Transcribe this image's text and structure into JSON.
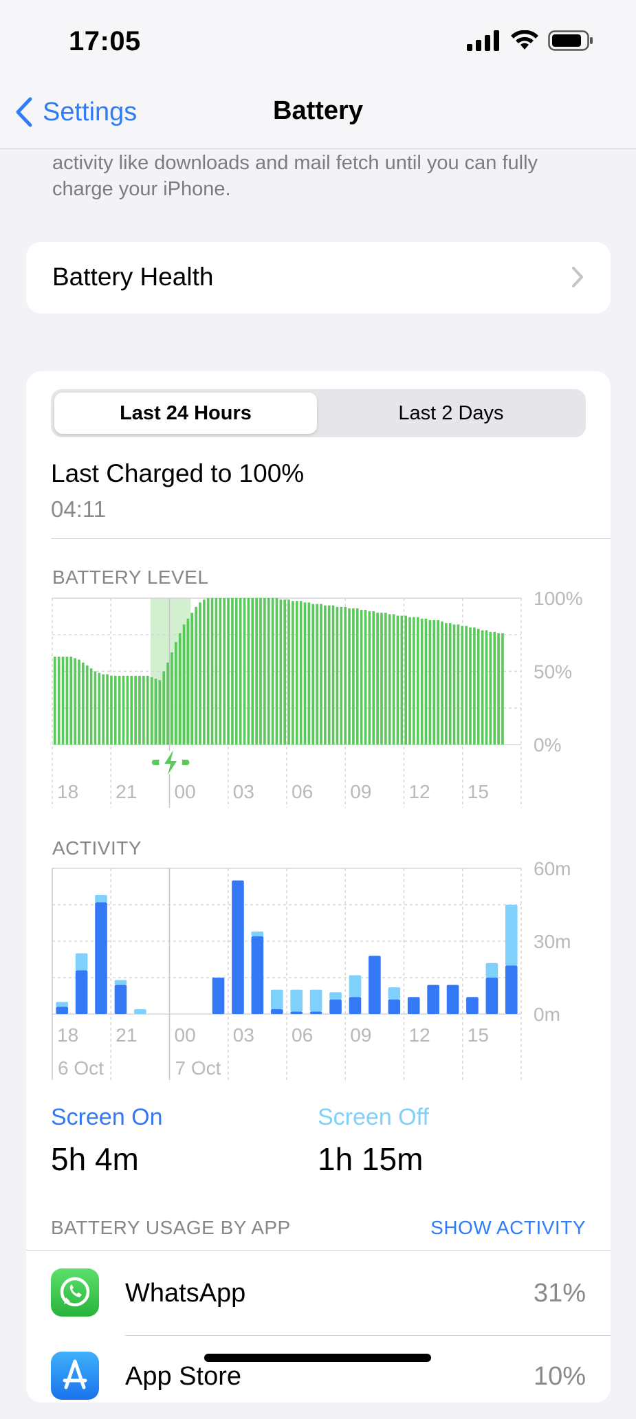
{
  "status_bar": {
    "time": "17:05"
  },
  "nav": {
    "back_label": "Settings",
    "title": "Battery"
  },
  "info_note": "activity like downloads and mail fetch until you can fully charge your iPhone.",
  "battery_health": {
    "label": "Battery Health"
  },
  "segments": {
    "selected": "Last 24 Hours",
    "other": "Last 2 Days"
  },
  "last_charged": {
    "title": "Last Charged to 100%",
    "time": "04:11"
  },
  "colors": {
    "accent": "#2f7cf6",
    "battery_bar": "#5ac85a",
    "charging_bg": "#d2f0d0",
    "screen_on": "#3478f6",
    "screen_off": "#7fd0fa"
  },
  "chart_data": [
    {
      "type": "bar",
      "title": "BATTERY LEVEL",
      "x_ticks": [
        "18",
        "21",
        "00",
        "03",
        "06",
        "09",
        "12",
        "15"
      ],
      "y_ticks": [
        "100%",
        "50%",
        "0%"
      ],
      "ylim": [
        0,
        100
      ],
      "charging_window": {
        "start_index": 24,
        "end_index": 34
      },
      "values": [
        60,
        60,
        60,
        60,
        60,
        59,
        58,
        56,
        54,
        52,
        50,
        49,
        48,
        48,
        47,
        47,
        47,
        47,
        47,
        47,
        47,
        47,
        47,
        47,
        46,
        45,
        44,
        50,
        56,
        63,
        70,
        76,
        82,
        86,
        90,
        94,
        97,
        99,
        100,
        100,
        100,
        100,
        100,
        100,
        100,
        100,
        100,
        100,
        100,
        100,
        100,
        100,
        100,
        100,
        100,
        100,
        99,
        99,
        99,
        98,
        98,
        98,
        97,
        97,
        96,
        96,
        96,
        95,
        95,
        95,
        94,
        94,
        94,
        93,
        93,
        93,
        92,
        92,
        91,
        91,
        90,
        90,
        90,
        89,
        89,
        88,
        88,
        88,
        87,
        87,
        87,
        86,
        86,
        85,
        85,
        85,
        84,
        83,
        83,
        82,
        82,
        81,
        81,
        80,
        80,
        79,
        78,
        78,
        77,
        77,
        76,
        76
      ]
    },
    {
      "type": "bar",
      "title": "ACTIVITY",
      "x_ticks": [
        "18",
        "21",
        "00",
        "03",
        "06",
        "09",
        "12",
        "15"
      ],
      "date_labels": [
        "6 Oct",
        "7 Oct"
      ],
      "y_ticks": [
        "60m",
        "30m",
        "0m"
      ],
      "ylim": [
        0,
        60
      ],
      "series": [
        {
          "name": "Screen On",
          "values": [
            3,
            18,
            46,
            12,
            0,
            0,
            0,
            0,
            15,
            55,
            32,
            2,
            1,
            1,
            6,
            7,
            24,
            6,
            7,
            12,
            12,
            7,
            15,
            20
          ]
        },
        {
          "name": "Screen Off",
          "values": [
            2,
            7,
            3,
            2,
            2,
            0,
            0,
            0,
            0,
            0,
            2,
            8,
            9,
            9,
            3,
            9,
            0,
            5,
            0,
            0,
            0,
            0,
            6,
            25
          ]
        }
      ]
    }
  ],
  "legend": {
    "screen_on": {
      "label": "Screen On",
      "value": "5h 4m"
    },
    "screen_off": {
      "label": "Screen Off",
      "value": "1h 15m"
    }
  },
  "usage": {
    "header": "BATTERY USAGE BY APP",
    "show_activity": "SHOW ACTIVITY",
    "apps": [
      {
        "name": "WhatsApp",
        "percent": "31%",
        "icon": "whatsapp-icon"
      },
      {
        "name": "App Store",
        "percent": "10%",
        "icon": "app-store-icon"
      }
    ]
  }
}
